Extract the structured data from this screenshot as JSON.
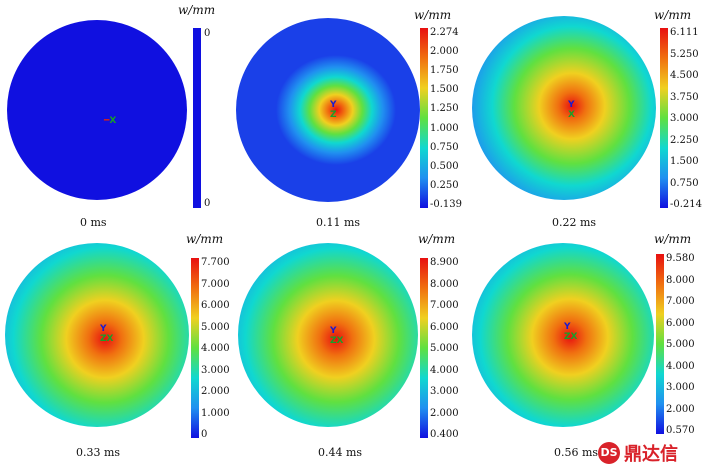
{
  "unit_label": "w/mm",
  "panels": [
    {
      "time": "0 ms",
      "ticks": [
        "0",
        "0"
      ],
      "uniform": true
    },
    {
      "time": "0.11 ms",
      "ticks": [
        "2.274",
        "2.000",
        "1.750",
        "1.500",
        "1.250",
        "1.000",
        "0.750",
        "0.500",
        "0.250",
        "-0.139"
      ]
    },
    {
      "time": "0.22 ms",
      "ticks": [
        "6.111",
        "5.250",
        "4.500",
        "3.750",
        "3.000",
        "2.250",
        "1.500",
        "0.750",
        "-0.214"
      ]
    },
    {
      "time": "0.33 ms",
      "ticks": [
        "7.700",
        "7.000",
        "6.000",
        "5.000",
        "4.000",
        "3.000",
        "2.000",
        "1.000",
        "0"
      ]
    },
    {
      "time": "0.44 ms",
      "ticks": [
        "8.900",
        "8.000",
        "7.000",
        "6.000",
        "5.000",
        "4.000",
        "3.000",
        "2.000",
        "0.400"
      ]
    },
    {
      "time": "0.56 ms",
      "ticks": [
        "9.580",
        "8.000",
        "7.000",
        "6.000",
        "5.000",
        "4.000",
        "3.000",
        "2.000",
        "0.570"
      ]
    }
  ],
  "axes": {
    "y": "Y",
    "z": "Z",
    "x": "X"
  },
  "logo": {
    "mark": "DS",
    "text": "鼎达信"
  },
  "colors": {
    "uniform_blue": "#1010e0"
  }
}
